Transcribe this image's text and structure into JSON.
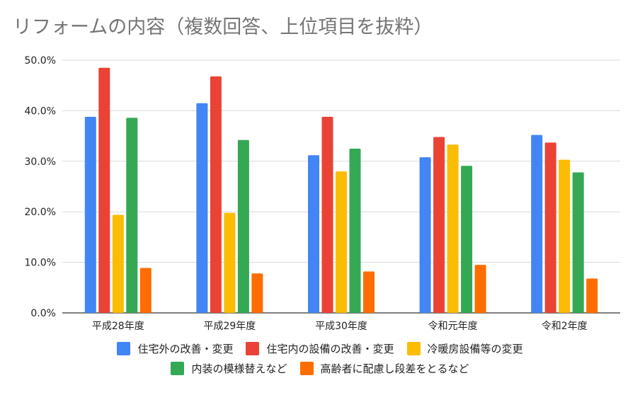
{
  "title": "リフォームの内容（複数回答、上位項目を抜粋）",
  "chart_data": {
    "type": "bar",
    "title": "リフォームの内容（複数回答、上位項目を抜粋）",
    "categories": [
      "平成28年度",
      "平成29年度",
      "平成30年度",
      "令和元年度",
      "令和2年度"
    ],
    "ylim": [
      0,
      50
    ],
    "yticks": [
      "0.0%",
      "10.0%",
      "20.0%",
      "30.0%",
      "40.0%",
      "50.0%"
    ],
    "grid": true,
    "legend_position": "bottom",
    "series": [
      {
        "name": "住宅外の改善・変更",
        "color": "#4285F4",
        "values": [
          38.8,
          41.5,
          31.2,
          30.8,
          35.2
        ]
      },
      {
        "name": "住宅内の設備の改善・変更",
        "color": "#EA4335",
        "values": [
          48.5,
          46.8,
          38.8,
          34.8,
          33.7
        ]
      },
      {
        "name": "冷暖房設備等の変更",
        "color": "#FBBC04",
        "values": [
          19.4,
          19.8,
          28.0,
          33.3,
          30.3
        ]
      },
      {
        "name": "内装の模様替えなど",
        "color": "#34A853",
        "values": [
          38.6,
          34.2,
          32.5,
          29.1,
          27.8
        ]
      },
      {
        "name": "高齢者に配慮し段差をとるなど",
        "color": "#FF6D01",
        "values": [
          8.9,
          7.8,
          8.2,
          9.5,
          6.8
        ]
      }
    ]
  }
}
